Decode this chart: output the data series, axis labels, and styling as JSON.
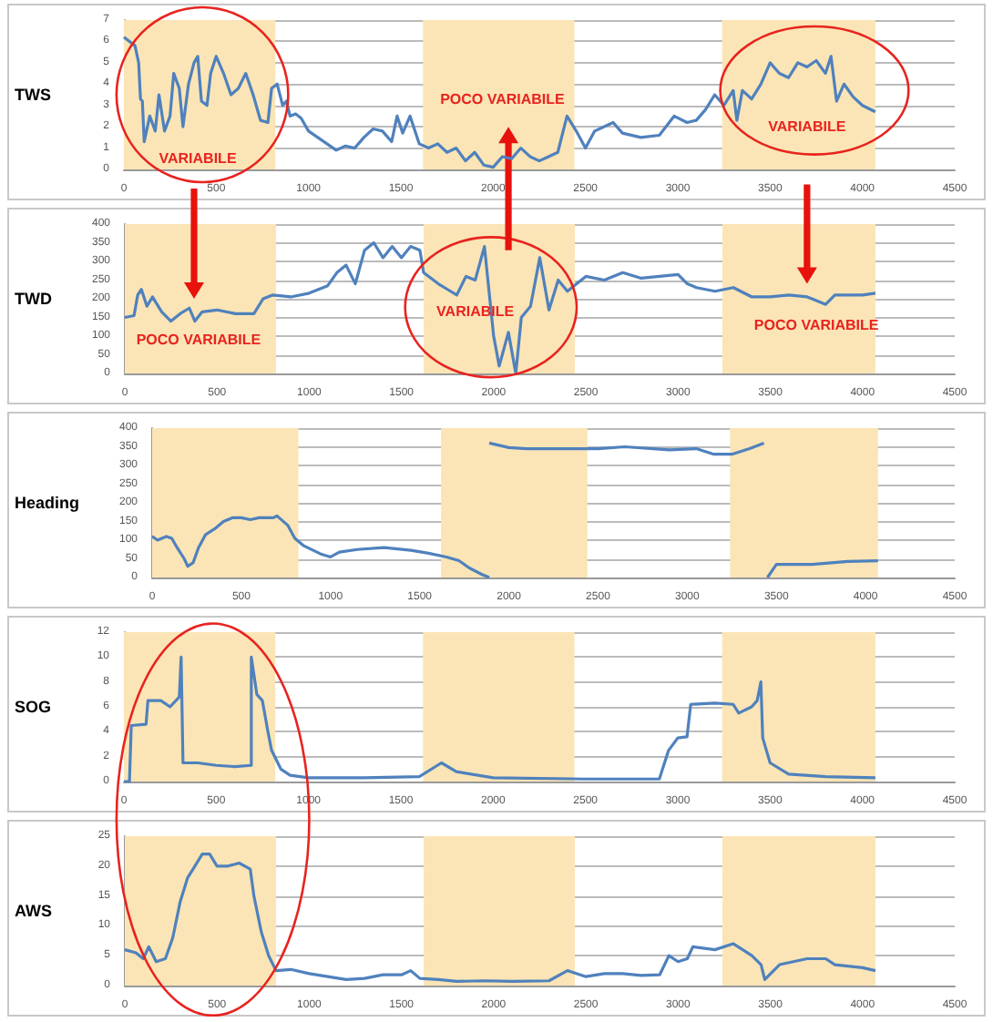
{
  "chart_data": [
    {
      "type": "line",
      "ylabel": "TWS",
      "xlim": [
        0,
        4500
      ],
      "xticks": [
        0,
        500,
        1000,
        1500,
        2000,
        2500,
        3000,
        3500,
        4000,
        4500
      ],
      "ylim": [
        0,
        7
      ],
      "yticks": [
        0,
        1,
        2,
        3,
        4,
        5,
        6,
        7
      ],
      "grid": "y",
      "marker": "none",
      "line_style": "solid",
      "bands": [
        {
          "axis": "x",
          "from": 0,
          "to": 820,
          "color": "#fbe5b6"
        },
        {
          "axis": "x",
          "from": 1620,
          "to": 2440,
          "color": "#fbe5b6"
        },
        {
          "axis": "x",
          "from": 3240,
          "to": 4070,
          "color": "#fbe5b6"
        }
      ],
      "annotations": [
        "VARIABILE",
        "POCO VARIABILE",
        "VARIABILE"
      ],
      "series": [
        {
          "color": "#4f81bd",
          "x": [
            0,
            30,
            60,
            80,
            90,
            100,
            110,
            140,
            170,
            190,
            220,
            250,
            270,
            300,
            320,
            350,
            380,
            400,
            420,
            450,
            470,
            500,
            540,
            580,
            620,
            660,
            700,
            740,
            780,
            800,
            830,
            860,
            880,
            900,
            930,
            960,
            1000,
            1050,
            1100,
            1150,
            1200,
            1250,
            1300,
            1350,
            1400,
            1450,
            1480,
            1510,
            1550,
            1600,
            1650,
            1700,
            1750,
            1800,
            1850,
            1900,
            1950,
            2000,
            2050,
            2100,
            2150,
            2200,
            2250,
            2300,
            2350,
            2400,
            2450,
            2500,
            2550,
            2650,
            2700,
            2800,
            2900,
            2980,
            3050,
            3100,
            3150,
            3200,
            3250,
            3300,
            3320,
            3350,
            3400,
            3450,
            3500,
            3550,
            3600,
            3650,
            3700,
            3750,
            3800,
            3830,
            3860,
            3900,
            3950,
            4000,
            4070
          ],
          "values": [
            6.2,
            6,
            5.8,
            5,
            3.3,
            3.2,
            1.3,
            2.5,
            1.8,
            3.5,
            1.8,
            2.5,
            4.5,
            3.8,
            2,
            4,
            5,
            5.3,
            3.2,
            3,
            4.5,
            5.3,
            4.5,
            3.5,
            3.8,
            4.5,
            3.5,
            2.3,
            2.2,
            3.8,
            4,
            3,
            3.2,
            2.5,
            2.6,
            2.4,
            1.8,
            1.5,
            1.2,
            0.9,
            1.1,
            1,
            1.5,
            1.9,
            1.8,
            1.3,
            2.5,
            1.7,
            2.5,
            1.2,
            1,
            1.2,
            0.8,
            1,
            0.4,
            0.8,
            0.2,
            0.1,
            0.6,
            0.5,
            1,
            0.6,
            0.4,
            0.6,
            0.8,
            2.5,
            1.8,
            1,
            1.8,
            2.2,
            1.7,
            1.5,
            1.6,
            2.5,
            2.2,
            2.3,
            2.8,
            3.5,
            3,
            3.7,
            2.3,
            3.7,
            3.3,
            4,
            5,
            4.5,
            4.3,
            5,
            4.8,
            5.1,
            4.5,
            5.3,
            3.2,
            4,
            3.4,
            3,
            2.7
          ]
        }
      ]
    },
    {
      "type": "line",
      "ylabel": "TWD",
      "xlim": [
        0,
        4500
      ],
      "xticks": [
        0,
        500,
        1000,
        1500,
        2000,
        2500,
        3000,
        3500,
        4000,
        4500
      ],
      "ylim": [
        0,
        400
      ],
      "yticks": [
        0,
        50,
        100,
        150,
        200,
        250,
        300,
        350,
        400
      ],
      "grid": "y",
      "marker": "none",
      "line_style": "solid",
      "bands": [
        {
          "axis": "x",
          "from": 0,
          "to": 820,
          "color": "#fbe5b6"
        },
        {
          "axis": "x",
          "from": 1620,
          "to": 2440,
          "color": "#fbe5b6"
        },
        {
          "axis": "x",
          "from": 3240,
          "to": 4070,
          "color": "#fbe5b6"
        }
      ],
      "annotations": [
        "POCO VARIABILE",
        "VARIABILE",
        "POCO VARIABILE"
      ],
      "series": [
        {
          "color": "#4f81bd",
          "x": [
            0,
            50,
            70,
            90,
            120,
            150,
            200,
            250,
            300,
            350,
            380,
            420,
            500,
            600,
            700,
            750,
            800,
            900,
            1000,
            1100,
            1150,
            1200,
            1250,
            1300,
            1350,
            1400,
            1450,
            1500,
            1550,
            1600,
            1620,
            1700,
            1750,
            1800,
            1850,
            1900,
            1950,
            2000,
            2030,
            2080,
            2120,
            2150,
            2200,
            2250,
            2300,
            2350,
            2400,
            2450,
            2500,
            2600,
            2700,
            2800,
            2900,
            3000,
            3050,
            3100,
            3200,
            3300,
            3400,
            3500,
            3600,
            3700,
            3750,
            3800,
            3850,
            4000,
            4070
          ],
          "values": [
            150,
            155,
            210,
            225,
            180,
            205,
            165,
            140,
            160,
            175,
            140,
            165,
            170,
            160,
            160,
            200,
            210,
            205,
            215,
            235,
            270,
            290,
            240,
            330,
            350,
            310,
            340,
            310,
            340,
            330,
            270,
            240,
            225,
            210,
            260,
            250,
            340,
            100,
            20,
            110,
            0,
            150,
            180,
            310,
            170,
            250,
            220,
            240,
            260,
            250,
            270,
            255,
            260,
            265,
            240,
            230,
            220,
            230,
            205,
            205,
            210,
            205,
            195,
            185,
            210,
            210,
            215
          ]
        }
      ]
    },
    {
      "type": "line",
      "ylabel": "Heading",
      "xlim": [
        0,
        4500
      ],
      "xticks": [
        0,
        500,
        1000,
        1500,
        2000,
        2500,
        3000,
        3500,
        4000,
        4500
      ],
      "ylim": [
        0,
        400
      ],
      "yticks": [
        0,
        50,
        100,
        150,
        200,
        250,
        300,
        350,
        400
      ],
      "grid": "y",
      "marker": "none",
      "line_style": "solid",
      "bands": [
        {
          "axis": "x",
          "from": 0,
          "to": 820,
          "color": "#fbe5b6"
        },
        {
          "axis": "x",
          "from": 1620,
          "to": 2440,
          "color": "#fbe5b6"
        },
        {
          "axis": "x",
          "from": 3240,
          "to": 4070,
          "color": "#fbe5b6"
        }
      ],
      "series": [
        {
          "color": "#4f81bd",
          "x": [
            0,
            30,
            80,
            110,
            140,
            180,
            200,
            230,
            260,
            300,
            350,
            400,
            450,
            500,
            550,
            600,
            680,
            700,
            760,
            800,
            850,
            950,
            1000,
            1050,
            1150,
            1300,
            1450,
            1550,
            1650,
            1720,
            1780,
            1850,
            1890
          ],
          "values": [
            110,
            100,
            110,
            105,
            80,
            50,
            30,
            40,
            80,
            115,
            130,
            150,
            160,
            160,
            155,
            160,
            160,
            165,
            140,
            105,
            85,
            62,
            55,
            68,
            75,
            80,
            73,
            65,
            55,
            45,
            25,
            8,
            0
          ]
        },
        {
          "color": "#4f81bd",
          "x": [
            1890,
            2000,
            2100,
            2300,
            2500,
            2650,
            2900,
            3050,
            3150,
            3250,
            3350,
            3430
          ],
          "values": [
            360,
            348,
            345,
            345,
            345,
            350,
            342,
            345,
            330,
            330,
            345,
            360
          ]
        },
        {
          "color": "#4f81bd",
          "x": [
            3450,
            3500,
            3700,
            3900,
            4070
          ],
          "values": [
            0,
            35,
            35,
            43,
            45
          ]
        }
      ]
    },
    {
      "type": "line",
      "ylabel": "SOG",
      "xlim": [
        0,
        4500
      ],
      "xticks": [
        0,
        500,
        1000,
        1500,
        2000,
        2500,
        3000,
        3500,
        4000,
        4500
      ],
      "ylim": [
        0,
        12
      ],
      "yticks": [
        0,
        2,
        4,
        6,
        8,
        10,
        12
      ],
      "grid": "y",
      "marker": "none",
      "line_style": "solid",
      "bands": [
        {
          "axis": "x",
          "from": 0,
          "to": 820,
          "color": "#fbe5b6"
        },
        {
          "axis": "x",
          "from": 1620,
          "to": 2440,
          "color": "#fbe5b6"
        },
        {
          "axis": "x",
          "from": 3240,
          "to": 4070,
          "color": "#fbe5b6"
        }
      ],
      "series": [
        {
          "color": "#4f81bd",
          "x": [
            0,
            30,
            40,
            120,
            130,
            200,
            250,
            300,
            310,
            320,
            400,
            500,
            600,
            690,
            690,
            720,
            750,
            780,
            800,
            850,
            900,
            1000,
            1300,
            1600,
            1720,
            1800,
            2000,
            2500,
            2900,
            2950,
            3000,
            3050,
            3070,
            3200,
            3300,
            3330,
            3400,
            3430,
            3450,
            3460,
            3500,
            3600,
            3800,
            4070
          ],
          "values": [
            0,
            0,
            4.5,
            4.6,
            6.5,
            6.5,
            6,
            6.8,
            10,
            1.5,
            1.5,
            1.3,
            1.2,
            1.3,
            10,
            7,
            6.5,
            4,
            2.5,
            1,
            0.5,
            0.3,
            0.3,
            0.4,
            1.5,
            0.8,
            0.3,
            0.2,
            0.2,
            2.5,
            3.5,
            3.6,
            6.2,
            6.3,
            6.2,
            5.5,
            6,
            6.5,
            8,
            3.5,
            1.5,
            0.6,
            0.4,
            0.3
          ]
        }
      ]
    },
    {
      "type": "line",
      "ylabel": "AWS",
      "xlim": [
        0,
        4500
      ],
      "xticks": [
        0,
        500,
        1000,
        1500,
        2000,
        2500,
        3000,
        3500,
        4000,
        4500
      ],
      "ylim": [
        0,
        25
      ],
      "yticks": [
        0,
        5,
        10,
        15,
        20,
        25
      ],
      "grid": "y",
      "marker": "none",
      "line_style": "solid",
      "bands": [
        {
          "axis": "x",
          "from": 0,
          "to": 820,
          "color": "#fbe5b6"
        },
        {
          "axis": "x",
          "from": 1620,
          "to": 2440,
          "color": "#fbe5b6"
        },
        {
          "axis": "x",
          "from": 3240,
          "to": 4070,
          "color": "#fbe5b6"
        }
      ],
      "series": [
        {
          "color": "#4f81bd",
          "x": [
            0,
            60,
            100,
            130,
            170,
            220,
            260,
            300,
            340,
            380,
            420,
            460,
            500,
            560,
            620,
            680,
            700,
            740,
            780,
            820,
            900,
            1000,
            1100,
            1200,
            1300,
            1400,
            1500,
            1550,
            1600,
            1700,
            1800,
            1950,
            2100,
            2300,
            2400,
            2500,
            2600,
            2700,
            2800,
            2900,
            2950,
            3000,
            3050,
            3080,
            3200,
            3300,
            3400,
            3450,
            3470,
            3550,
            3700,
            3800,
            3850,
            4000,
            4070
          ],
          "values": [
            6,
            5.5,
            4.5,
            6.5,
            4,
            4.5,
            8,
            14,
            18,
            20,
            22,
            22,
            20,
            20,
            20.5,
            19.5,
            15,
            9,
            5,
            2.5,
            2.7,
            2,
            1.5,
            1,
            1.2,
            1.8,
            1.8,
            2.5,
            1.2,
            1,
            0.7,
            0.8,
            0.7,
            0.8,
            2.5,
            1.5,
            2,
            2,
            1.7,
            1.8,
            5,
            4,
            4.5,
            6.5,
            6,
            7,
            5,
            3.5,
            1,
            3.5,
            4.5,
            4.5,
            3.5,
            3,
            2.5
          ]
        }
      ]
    }
  ]
}
